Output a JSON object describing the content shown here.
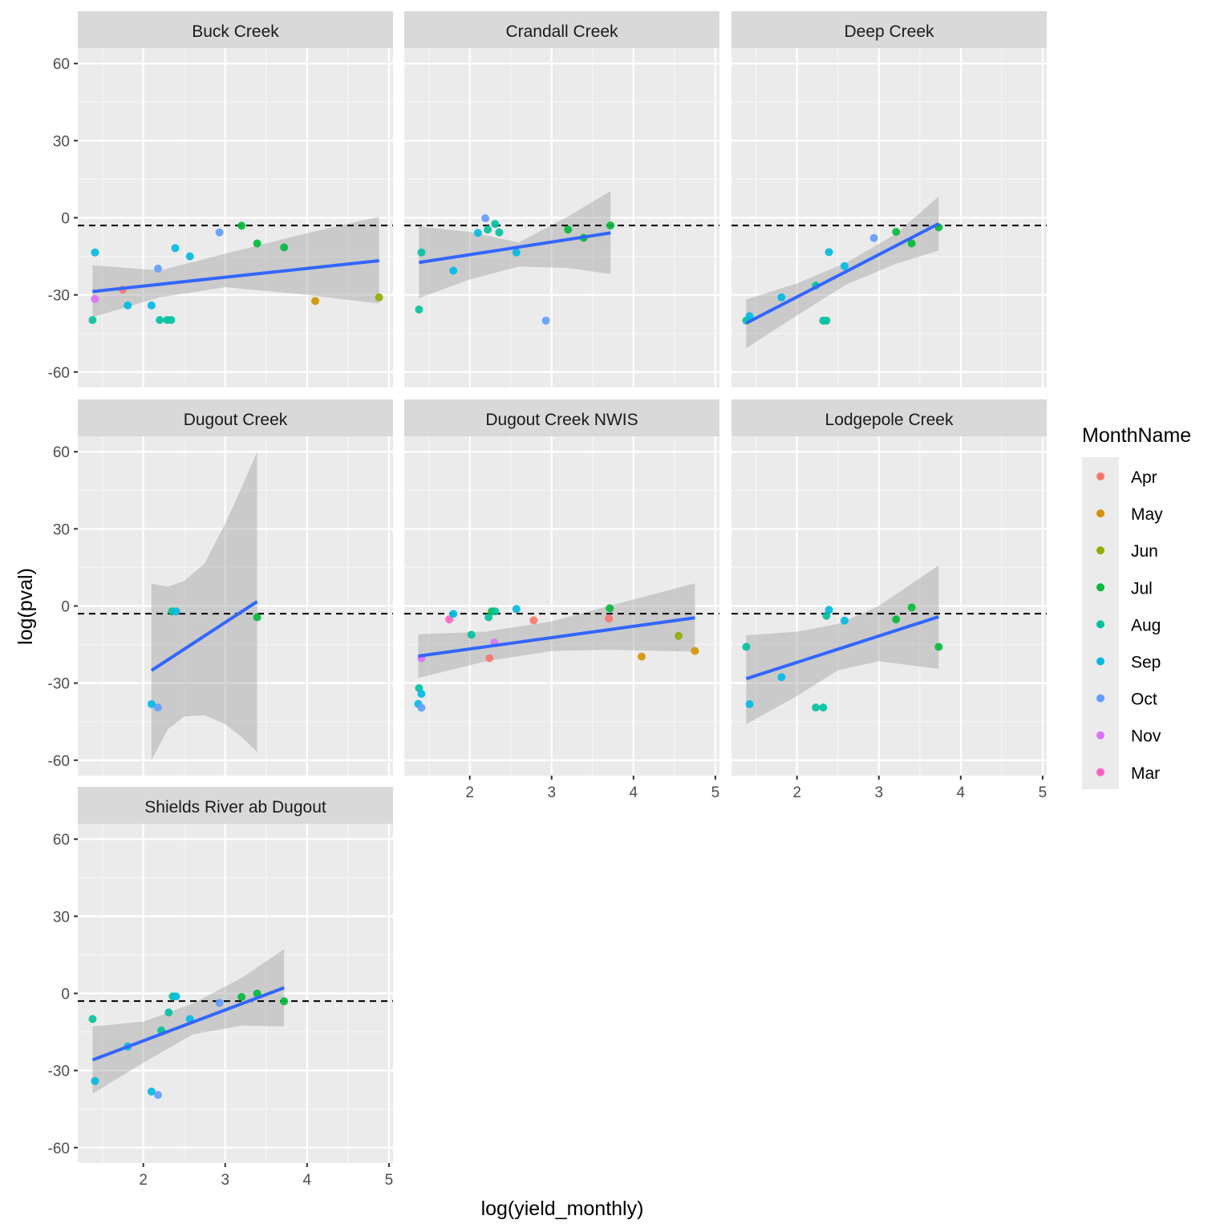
{
  "chart_data": {
    "type": "scatter",
    "title": "",
    "xlabel": "log(yield_monthly)",
    "ylabel": "log(pval)",
    "xlim": [
      1.2,
      5.05
    ],
    "ylim": [
      -66,
      66
    ],
    "xticks": [
      2,
      3,
      4,
      5
    ],
    "yticks": [
      -60,
      -30,
      0,
      30,
      60
    ],
    "grid": true,
    "reference_line": {
      "y": -3,
      "style": "dashed",
      "color": "#000000"
    },
    "smooth": {
      "method": "lm",
      "color": "#3366FF",
      "band_color": "#999999"
    },
    "legend": {
      "title": "MonthName",
      "position": "right",
      "entries": [
        {
          "label": "Apr",
          "color": "#F8766D"
        },
        {
          "label": "May",
          "color": "#D39200"
        },
        {
          "label": "Jun",
          "color": "#93AA00"
        },
        {
          "label": "Jul",
          "color": "#00BA38"
        },
        {
          "label": "Aug",
          "color": "#00C19F"
        },
        {
          "label": "Sep",
          "color": "#00B9E3"
        },
        {
          "label": "Oct",
          "color": "#619CFF"
        },
        {
          "label": "Nov",
          "color": "#DB72FB"
        },
        {
          "label": "Mar",
          "color": "#FF61C3"
        }
      ]
    },
    "panels": [
      {
        "name": "Buck Creek",
        "points": [
          {
            "x": 1.41,
            "y": -13.5,
            "month": "Sep"
          },
          {
            "x": 1.41,
            "y": -31.6,
            "month": "Nov"
          },
          {
            "x": 1.38,
            "y": -39.8,
            "month": "Aug"
          },
          {
            "x": 1.75,
            "y": -28.0,
            "month": "Apr"
          },
          {
            "x": 1.81,
            "y": -34.1,
            "month": "Sep"
          },
          {
            "x": 2.18,
            "y": -19.8,
            "month": "Oct"
          },
          {
            "x": 2.1,
            "y": -34.1,
            "month": "Sep"
          },
          {
            "x": 2.2,
            "y": -39.8,
            "month": "Aug"
          },
          {
            "x": 2.29,
            "y": -39.8,
            "month": "Aug"
          },
          {
            "x": 2.34,
            "y": -39.8,
            "month": "Aug"
          },
          {
            "x": 2.39,
            "y": -11.8,
            "month": "Sep"
          },
          {
            "x": 2.57,
            "y": -15.0,
            "month": "Sep"
          },
          {
            "x": 2.93,
            "y": -5.7,
            "month": "Oct"
          },
          {
            "x": 3.2,
            "y": -3.1,
            "month": "Jul"
          },
          {
            "x": 3.39,
            "y": -10.0,
            "month": "Jul"
          },
          {
            "x": 3.72,
            "y": -11.5,
            "month": "Jul"
          },
          {
            "x": 4.1,
            "y": -32.4,
            "month": "May"
          },
          {
            "x": 4.88,
            "y": -31.0,
            "month": "Jun"
          }
        ],
        "fit": {
          "x": [
            1.38,
            4.88
          ],
          "y": [
            -28.7,
            -16.7
          ]
        },
        "band": {
          "x": [
            1.38,
            2.2,
            3.0,
            4.0,
            4.88
          ],
          "upper": [
            -18.5,
            -20.5,
            -14.0,
            -6.0,
            0.4
          ],
          "lower": [
            -38.6,
            -31.0,
            -27.0,
            -30.0,
            -33.4
          ]
        }
      },
      {
        "name": "Crandall Creek",
        "points": [
          {
            "x": 1.38,
            "y": -35.7,
            "month": "Aug"
          },
          {
            "x": 1.41,
            "y": -13.5,
            "month": "Aug"
          },
          {
            "x": 1.8,
            "y": -20.6,
            "month": "Sep"
          },
          {
            "x": 2.19,
            "y": -0.2,
            "month": "Oct"
          },
          {
            "x": 2.1,
            "y": -5.9,
            "month": "Sep"
          },
          {
            "x": 2.22,
            "y": -4.6,
            "month": "Aug"
          },
          {
            "x": 2.31,
            "y": -2.4,
            "month": "Aug"
          },
          {
            "x": 2.36,
            "y": -5.7,
            "month": "Aug"
          },
          {
            "x": 2.57,
            "y": -13.5,
            "month": "Sep"
          },
          {
            "x": 2.93,
            "y": -40.0,
            "month": "Oct"
          },
          {
            "x": 3.2,
            "y": -4.6,
            "month": "Jul"
          },
          {
            "x": 3.39,
            "y": -7.8,
            "month": "Jul"
          },
          {
            "x": 3.72,
            "y": -3.0,
            "month": "Jul"
          }
        ],
        "fit": {
          "x": [
            1.38,
            3.72
          ],
          "y": [
            -17.4,
            -5.9
          ]
        },
        "band": {
          "x": [
            1.38,
            2.0,
            2.6,
            3.2,
            3.72
          ],
          "upper": [
            -3.4,
            -5.5,
            -9.6,
            0.5,
            10.4
          ],
          "lower": [
            -31.3,
            -24.0,
            -19.0,
            -19.5,
            -21.9
          ]
        }
      },
      {
        "name": "Deep Creek",
        "points": [
          {
            "x": 1.38,
            "y": -40.0,
            "month": "Aug"
          },
          {
            "x": 1.42,
            "y": -38.3,
            "month": "Sep"
          },
          {
            "x": 1.81,
            "y": -31.0,
            "month": "Sep"
          },
          {
            "x": 2.23,
            "y": -26.4,
            "month": "Aug"
          },
          {
            "x": 2.39,
            "y": -13.4,
            "month": "Sep"
          },
          {
            "x": 2.32,
            "y": -40.0,
            "month": "Aug"
          },
          {
            "x": 2.36,
            "y": -40.0,
            "month": "Aug"
          },
          {
            "x": 2.58,
            "y": -18.8,
            "month": "Sep"
          },
          {
            "x": 2.94,
            "y": -7.9,
            "month": "Oct"
          },
          {
            "x": 3.21,
            "y": -5.5,
            "month": "Jul"
          },
          {
            "x": 3.4,
            "y": -10.0,
            "month": "Jul"
          },
          {
            "x": 3.73,
            "y": -3.7,
            "month": "Jul"
          }
        ],
        "fit": {
          "x": [
            1.38,
            3.73
          ],
          "y": [
            -41.0,
            -2.3
          ]
        },
        "band": {
          "x": [
            1.38,
            2.0,
            2.6,
            3.2,
            3.73
          ],
          "upper": [
            -31.8,
            -25.5,
            -17.5,
            -6.5,
            8.3
          ],
          "lower": [
            -50.7,
            -38.0,
            -26.0,
            -18.0,
            -12.7
          ]
        }
      },
      {
        "name": "Dugout Creek",
        "points": [
          {
            "x": 2.35,
            "y": -2.1,
            "month": "Aug"
          },
          {
            "x": 2.4,
            "y": -2.1,
            "month": "Sep"
          },
          {
            "x": 3.39,
            "y": -4.4,
            "month": "Jul"
          },
          {
            "x": 2.1,
            "y": -38.2,
            "month": "Sep"
          },
          {
            "x": 2.18,
            "y": -39.5,
            "month": "Oct"
          }
        ],
        "fit": {
          "x": [
            2.1,
            3.39
          ],
          "y": [
            -25.1,
            1.7
          ]
        },
        "band": {
          "x": [
            2.1,
            2.3,
            2.5,
            2.75,
            3.0,
            3.2,
            3.39
          ],
          "upper": [
            8.7,
            7.5,
            9.7,
            16.6,
            32.0,
            46.0,
            60.0
          ],
          "lower": [
            -59.9,
            -48.0,
            -43.0,
            -42.5,
            -46.0,
            -51.0,
            -56.8
          ]
        }
      },
      {
        "name": "Dugout Creek NWIS",
        "points": [
          {
            "x": 1.41,
            "y": -20.3,
            "month": "Nov"
          },
          {
            "x": 1.38,
            "y": -32.0,
            "month": "Aug"
          },
          {
            "x": 1.41,
            "y": -34.2,
            "month": "Sep"
          },
          {
            "x": 1.37,
            "y": -38.1,
            "month": "Sep"
          },
          {
            "x": 1.41,
            "y": -39.6,
            "month": "Oct"
          },
          {
            "x": 1.75,
            "y": -5.2,
            "month": "Mar"
          },
          {
            "x": 1.8,
            "y": -3.1,
            "month": "Sep"
          },
          {
            "x": 2.02,
            "y": -11.2,
            "month": "Aug"
          },
          {
            "x": 2.24,
            "y": -20.3,
            "month": "Apr"
          },
          {
            "x": 2.3,
            "y": -14.2,
            "month": "Nov"
          },
          {
            "x": 2.23,
            "y": -4.4,
            "month": "Aug"
          },
          {
            "x": 2.27,
            "y": -2.1,
            "month": "Jul"
          },
          {
            "x": 2.31,
            "y": -2.1,
            "month": "Aug"
          },
          {
            "x": 2.57,
            "y": -1.2,
            "month": "Sep"
          },
          {
            "x": 2.78,
            "y": -5.6,
            "month": "Apr"
          },
          {
            "x": 3.71,
            "y": -0.9,
            "month": "Jul"
          },
          {
            "x": 3.7,
            "y": -4.9,
            "month": "Apr"
          },
          {
            "x": 4.1,
            "y": -19.7,
            "month": "May"
          },
          {
            "x": 4.55,
            "y": -11.6,
            "month": "Jun"
          },
          {
            "x": 4.75,
            "y": -17.5,
            "month": "May"
          }
        ],
        "fit": {
          "x": [
            1.37,
            4.75
          ],
          "y": [
            -19.5,
            -4.6
          ]
        },
        "band": {
          "x": [
            1.37,
            2.2,
            3.0,
            3.7,
            4.75
          ],
          "upper": [
            -11.0,
            -10.0,
            -6.0,
            0.0,
            8.8
          ],
          "lower": [
            -28.0,
            -21.5,
            -17.5,
            -17.0,
            -17.8
          ]
        }
      },
      {
        "name": "Lodgepole Creek",
        "points": [
          {
            "x": 1.38,
            "y": -15.9,
            "month": "Aug"
          },
          {
            "x": 1.42,
            "y": -38.2,
            "month": "Sep"
          },
          {
            "x": 1.81,
            "y": -27.7,
            "month": "Sep"
          },
          {
            "x": 2.23,
            "y": -39.5,
            "month": "Aug"
          },
          {
            "x": 2.32,
            "y": -39.5,
            "month": "Aug"
          },
          {
            "x": 2.39,
            "y": -1.5,
            "month": "Sep"
          },
          {
            "x": 2.36,
            "y": -3.8,
            "month": "Aug"
          },
          {
            "x": 2.58,
            "y": -5.7,
            "month": "Sep"
          },
          {
            "x": 3.21,
            "y": -5.2,
            "month": "Jul"
          },
          {
            "x": 3.4,
            "y": -0.6,
            "month": "Jul"
          },
          {
            "x": 3.73,
            "y": -15.9,
            "month": "Jul"
          }
        ],
        "fit": {
          "x": [
            1.38,
            3.73
          ],
          "y": [
            -28.3,
            -4.2
          ]
        },
        "band": {
          "x": [
            1.38,
            2.0,
            2.5,
            3.0,
            3.73
          ],
          "upper": [
            -11.4,
            -10.0,
            -7.0,
            0.0,
            15.8
          ],
          "lower": [
            -46.0,
            -35.0,
            -25.0,
            -21.5,
            -24.5
          ]
        }
      },
      {
        "name": "Shields River ab Dugout",
        "points": [
          {
            "x": 1.38,
            "y": -10.0,
            "month": "Aug"
          },
          {
            "x": 1.41,
            "y": -34.1,
            "month": "Sep"
          },
          {
            "x": 1.81,
            "y": -20.7,
            "month": "Sep"
          },
          {
            "x": 2.1,
            "y": -38.2,
            "month": "Sep"
          },
          {
            "x": 2.18,
            "y": -39.5,
            "month": "Oct"
          },
          {
            "x": 2.22,
            "y": -14.4,
            "month": "Aug"
          },
          {
            "x": 2.31,
            "y": -7.4,
            "month": "Aug"
          },
          {
            "x": 2.36,
            "y": -1.2,
            "month": "Aug"
          },
          {
            "x": 2.4,
            "y": -1.2,
            "month": "Sep"
          },
          {
            "x": 2.57,
            "y": -10.0,
            "month": "Sep"
          },
          {
            "x": 2.93,
            "y": -3.7,
            "month": "Oct"
          },
          {
            "x": 3.2,
            "y": -1.4,
            "month": "Jul"
          },
          {
            "x": 3.39,
            "y": -0.1,
            "month": "Jul"
          },
          {
            "x": 3.72,
            "y": -3.1,
            "month": "Jul"
          }
        ],
        "fit": {
          "x": [
            1.38,
            3.72
          ],
          "y": [
            -25.9,
            2.2
          ]
        },
        "band": {
          "x": [
            1.38,
            2.0,
            2.6,
            3.2,
            3.72
          ],
          "upper": [
            -12.9,
            -11.0,
            -4.0,
            6.0,
            17.2
          ],
          "lower": [
            -39.0,
            -27.0,
            -16.0,
            -12.5,
            -12.9
          ]
        }
      }
    ]
  }
}
